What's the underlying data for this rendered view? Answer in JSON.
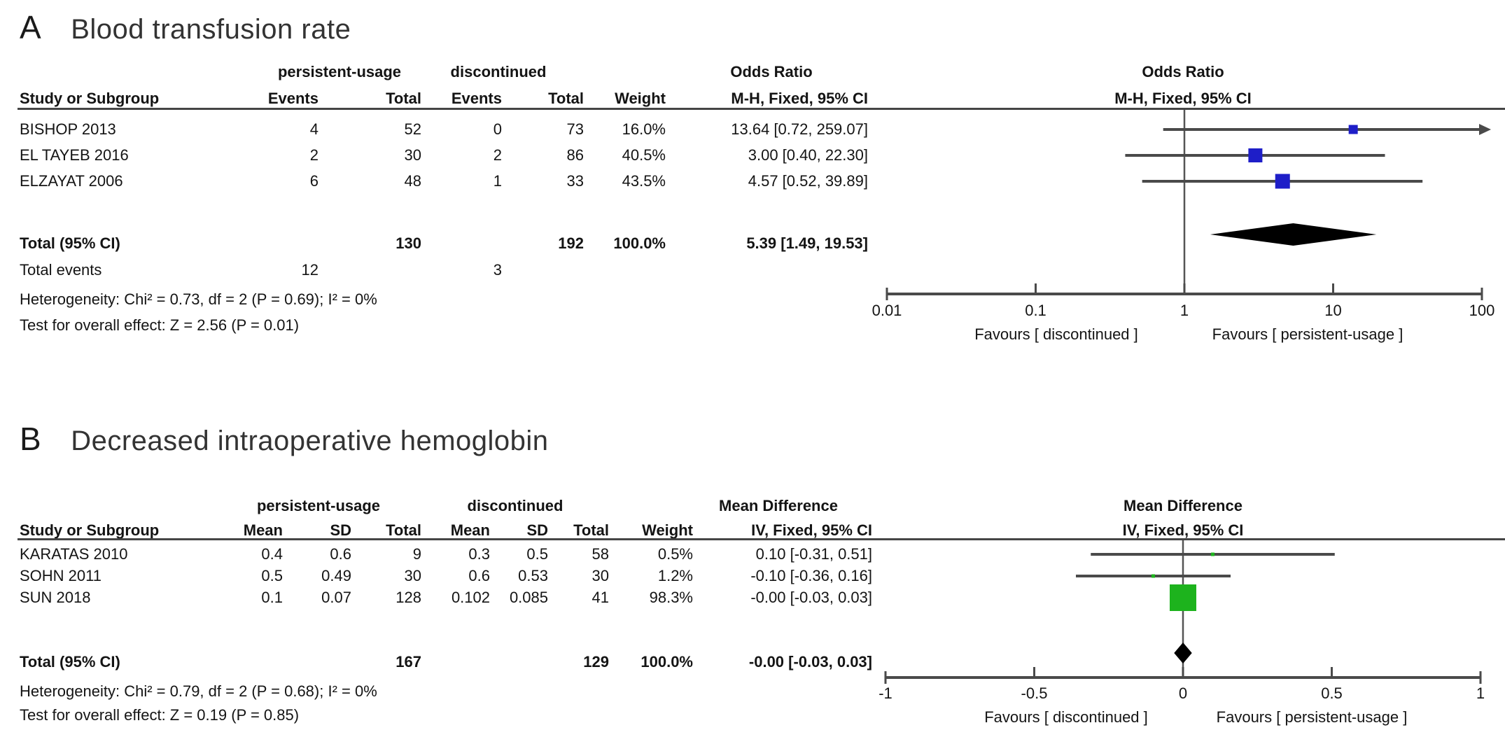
{
  "figure": {
    "panels": [
      {
        "label": "A",
        "title": "Blood transfusion rate",
        "group1": "persistent-usage",
        "group2": "discontinued",
        "effect_header": "Odds Ratio",
        "method_header": "M-H, Fixed, 95% CI",
        "columns": {
          "study": "Study or Subgroup",
          "events": "Events",
          "total": "Total",
          "weight": "Weight"
        },
        "rows": [
          {
            "study": "BISHOP 2013",
            "e1": "4",
            "t1": "52",
            "e2": "0",
            "t2": "73",
            "weight": "16.0%",
            "ci_text": "13.64 [0.72, 259.07]"
          },
          {
            "study": "EL TAYEB 2016",
            "e1": "2",
            "t1": "30",
            "e2": "2",
            "t2": "86",
            "weight": "40.5%",
            "ci_text": "3.00 [0.40, 22.30]"
          },
          {
            "study": "ELZAYAT 2006",
            "e1": "6",
            "t1": "48",
            "e2": "1",
            "t2": "33",
            "weight": "43.5%",
            "ci_text": "4.57 [0.52, 39.89]"
          }
        ],
        "total_label": "Total (95% CI)",
        "total": {
          "t1": "130",
          "t2": "192",
          "weight": "100.0%",
          "ci_text": "5.39 [1.49, 19.53]"
        },
        "total_events_label": "Total events",
        "total_events": {
          "e1": "12",
          "e2": "3"
        },
        "heterogeneity": "Heterogeneity: Chi² = 0.73, df = 2 (P = 0.69); I² = 0%",
        "overall_effect": "Test for overall effect: Z = 2.56 (P = 0.01)"
      },
      {
        "label": "B",
        "title": "Decreased intraoperative hemoglobin",
        "group1": "persistent-usage",
        "group2": "discontinued",
        "effect_header": "Mean Difference",
        "method_header": "IV, Fixed, 95% CI",
        "columns": {
          "study": "Study or Subgroup",
          "mean": "Mean",
          "sd": "SD",
          "total": "Total",
          "weight": "Weight"
        },
        "rows": [
          {
            "study": "KARATAS 2010",
            "m1": "0.4",
            "sd1": "0.6",
            "t1": "9",
            "m2": "0.3",
            "sd2": "0.5",
            "t2": "58",
            "weight": "0.5%",
            "ci_text": "0.10 [-0.31, 0.51]"
          },
          {
            "study": "SOHN 2011",
            "m1": "0.5",
            "sd1": "0.49",
            "t1": "30",
            "m2": "0.6",
            "sd2": "0.53",
            "t2": "30",
            "weight": "1.2%",
            "ci_text": "-0.10 [-0.36, 0.16]"
          },
          {
            "study": "SUN 2018",
            "m1": "0.1",
            "sd1": "0.07",
            "t1": "128",
            "m2": "0.102",
            "sd2": "0.085",
            "t2": "41",
            "weight": "98.3%",
            "ci_text": "-0.00 [-0.03, 0.03]"
          }
        ],
        "total_label": "Total (95% CI)",
        "total": {
          "t1": "167",
          "t2": "129",
          "weight": "100.0%",
          "ci_text": "-0.00 [-0.03, 0.03]"
        },
        "heterogeneity": "Heterogeneity: Chi² = 0.79, df = 2 (P = 0.68); I² = 0%",
        "overall_effect": "Test for overall effect: Z = 0.19 (P = 0.85)"
      }
    ]
  },
  "chart_data": [
    {
      "type": "forest",
      "panel": "A",
      "title": "Blood transfusion rate",
      "effect_measure": "Odds Ratio, M-H, Fixed, 95% CI",
      "scale": "log10",
      "xlim": [
        0.01,
        100
      ],
      "ticks": [
        0.01,
        0.1,
        1,
        10,
        100
      ],
      "null_line": 1,
      "marker_color": "#1e1ec8",
      "line_color": "#4a4a4a",
      "studies": [
        {
          "name": "BISHOP 2013",
          "est": 13.64,
          "lo": 0.72,
          "hi": 259.07,
          "weight": 16.0
        },
        {
          "name": "EL TAYEB 2016",
          "est": 3.0,
          "lo": 0.4,
          "hi": 22.3,
          "weight": 40.5
        },
        {
          "name": "ELZAYAT 2006",
          "est": 4.57,
          "lo": 0.52,
          "hi": 39.89,
          "weight": 43.5
        }
      ],
      "total": {
        "est": 5.39,
        "lo": 1.49,
        "hi": 19.53,
        "weight": 100.0
      },
      "favours_left": "Favours [ discontinued ]",
      "favours_right": "Favours [ persistent-usage ]"
    },
    {
      "type": "forest",
      "panel": "B",
      "title": "Decreased intraoperative hemoglobin",
      "effect_measure": "Mean Difference, IV, Fixed, 95% CI",
      "scale": "linear",
      "xlim": [
        -1,
        1
      ],
      "ticks": [
        -1,
        -0.5,
        0,
        0.5,
        1
      ],
      "null_line": 0,
      "marker_color": "#1db31d",
      "line_color": "#4a4a4a",
      "studies": [
        {
          "name": "KARATAS 2010",
          "est": 0.1,
          "lo": -0.31,
          "hi": 0.51,
          "weight": 0.5
        },
        {
          "name": "SOHN 2011",
          "est": -0.1,
          "lo": -0.36,
          "hi": 0.16,
          "weight": 1.2
        },
        {
          "name": "SUN 2018",
          "est": -0.0,
          "lo": -0.03,
          "hi": 0.03,
          "weight": 98.3
        }
      ],
      "total": {
        "est": -0.0,
        "lo": -0.03,
        "hi": 0.03,
        "weight": 100.0
      },
      "favours_left": "Favours [ discontinued ]",
      "favours_right": "Favours [ persistent-usage ]"
    }
  ]
}
